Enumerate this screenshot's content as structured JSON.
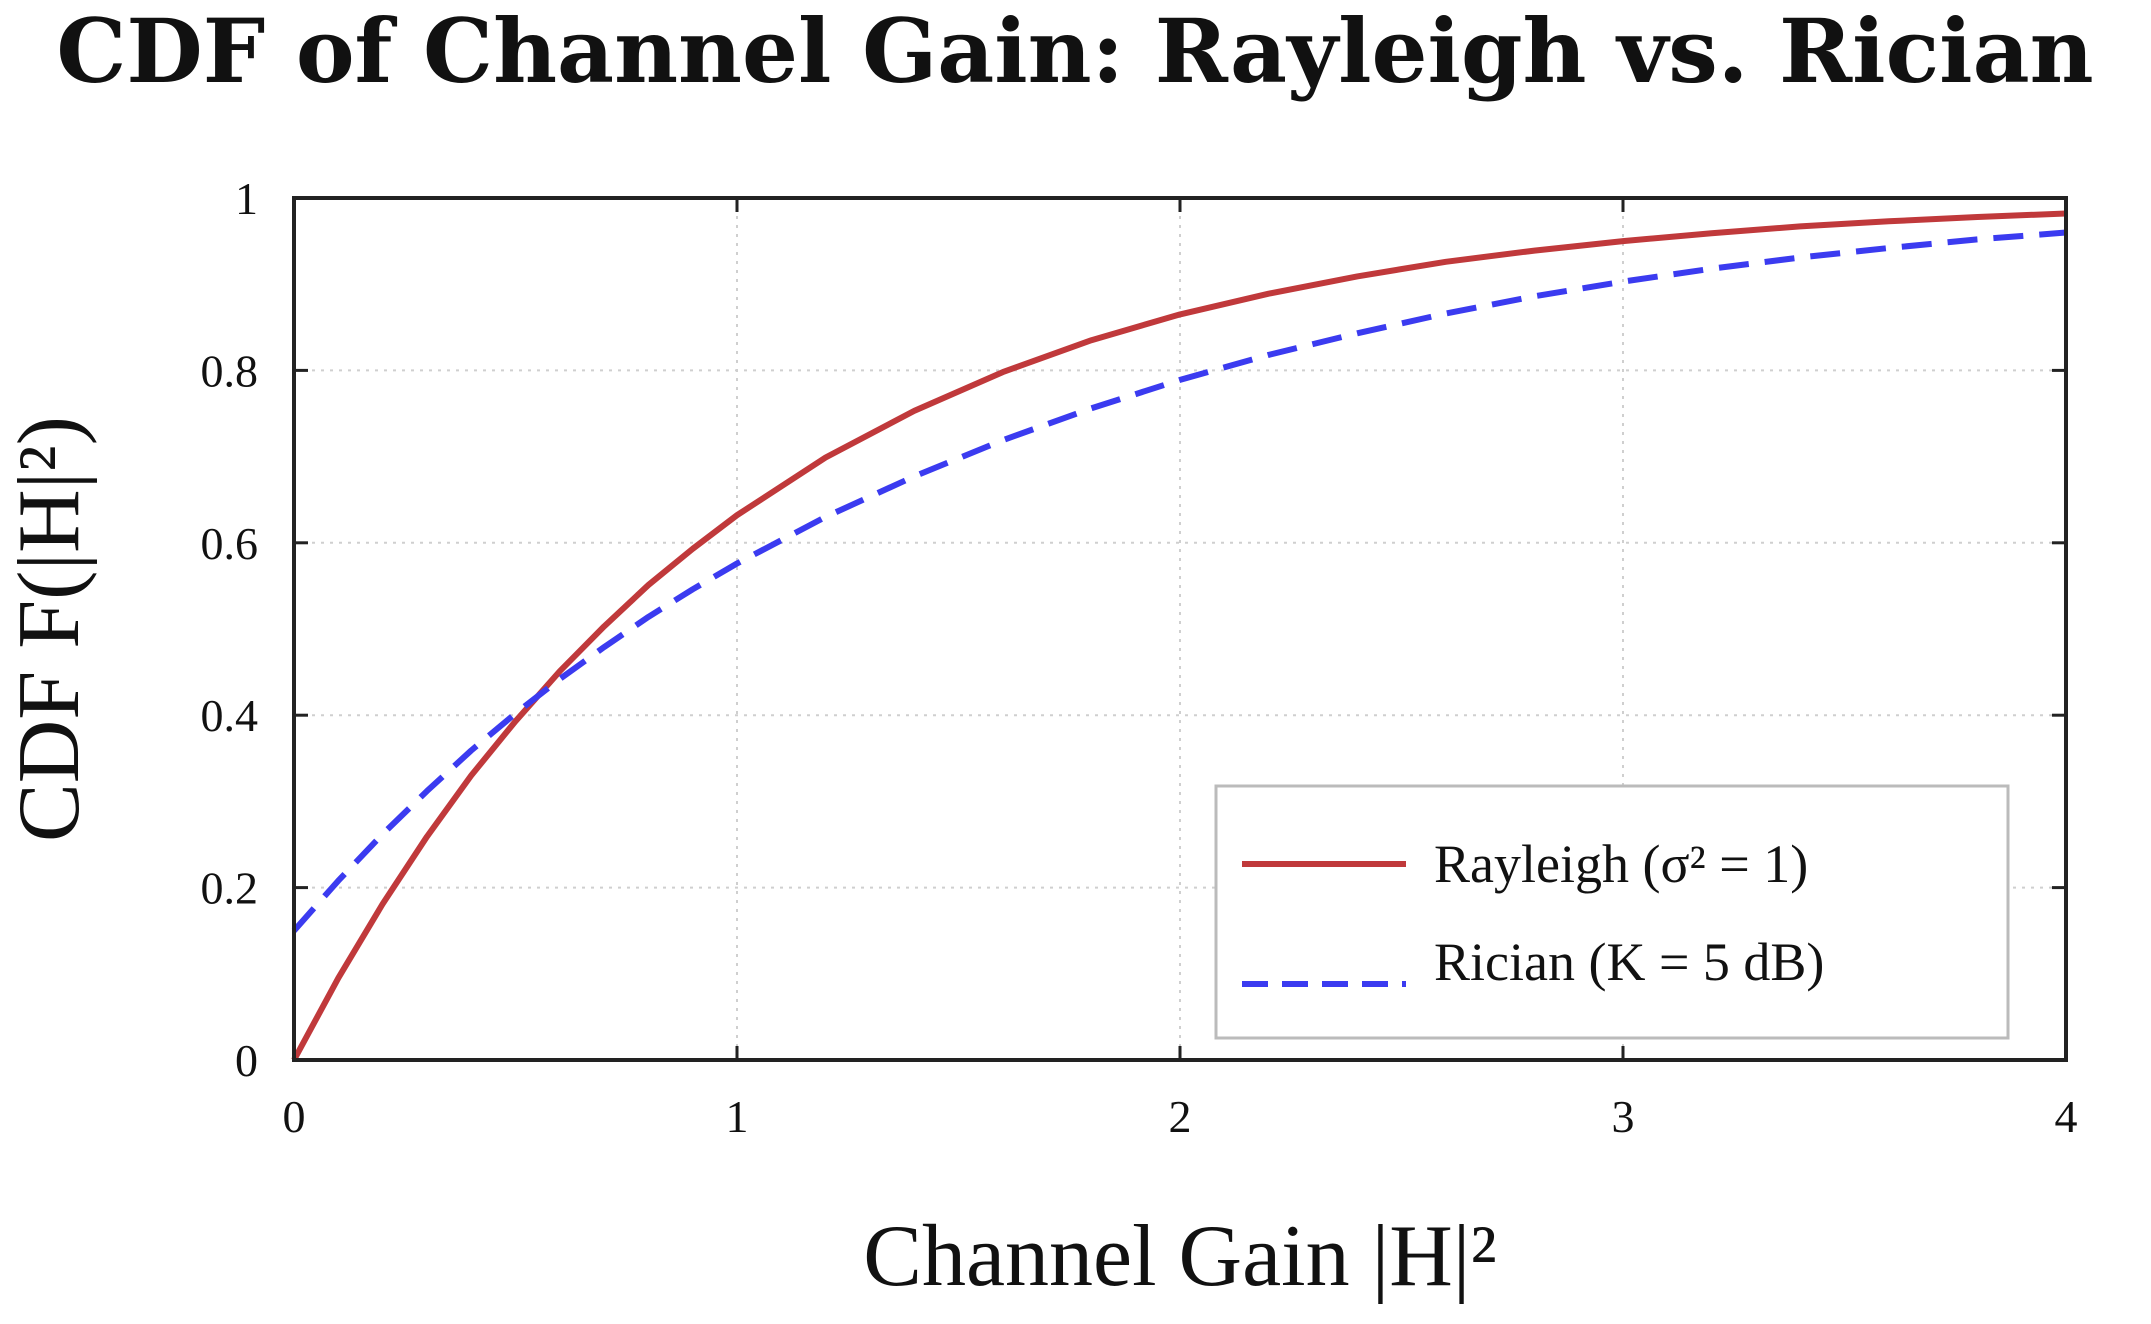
{
  "chart_data": {
    "type": "line",
    "title": "CDF of Channel Gain: Rayleigh vs. Rician",
    "xlabel": "Channel Gain |H|²",
    "ylabel": "CDF F(|H|²)",
    "xlim": [
      0,
      4
    ],
    "ylim": [
      0,
      1
    ],
    "xticks": [
      0,
      1,
      2,
      3,
      4
    ],
    "xtick_labels": [
      "0",
      "1",
      "2",
      "3",
      "4"
    ],
    "yticks": [
      0,
      0.2,
      0.4,
      0.6,
      0.8,
      1
    ],
    "ytick_labels": [
      "0",
      "0.2",
      "0.4",
      "0.6",
      "0.8",
      "1"
    ],
    "grid": true,
    "legend_position": "bottom-right",
    "series": [
      {
        "name": "Rayleigh (σ² = 1)",
        "color": "#c0393b",
        "style": "solid",
        "x": [
          0,
          0.1,
          0.2,
          0.3,
          0.4,
          0.5,
          0.6,
          0.7,
          0.8,
          0.9,
          1.0,
          1.2,
          1.4,
          1.6,
          1.8,
          2.0,
          2.2,
          2.4,
          2.6,
          2.8,
          3.0,
          3.2,
          3.4,
          3.6,
          3.8,
          4.0
        ],
        "y": [
          0,
          0.095,
          0.181,
          0.259,
          0.33,
          0.393,
          0.451,
          0.503,
          0.551,
          0.593,
          0.632,
          0.699,
          0.753,
          0.798,
          0.835,
          0.865,
          0.889,
          0.909,
          0.926,
          0.939,
          0.95,
          0.959,
          0.967,
          0.973,
          0.978,
          0.982
        ]
      },
      {
        "name": "Rician (K = 5 dB)",
        "color": "#3b3bf0",
        "style": "dashed",
        "x": [
          0,
          0.1,
          0.2,
          0.3,
          0.4,
          0.5,
          0.6,
          0.7,
          0.8,
          0.9,
          1.0,
          1.2,
          1.4,
          1.6,
          1.8,
          2.0,
          2.2,
          2.4,
          2.6,
          2.8,
          3.0,
          3.2,
          3.4,
          3.6,
          3.8,
          4.0
        ],
        "y": [
          0.15,
          0.208,
          0.262,
          0.312,
          0.359,
          0.402,
          0.442,
          0.479,
          0.514,
          0.546,
          0.576,
          0.63,
          0.677,
          0.719,
          0.756,
          0.789,
          0.818,
          0.843,
          0.866,
          0.886,
          0.903,
          0.918,
          0.931,
          0.942,
          0.952,
          0.96
        ]
      }
    ]
  }
}
